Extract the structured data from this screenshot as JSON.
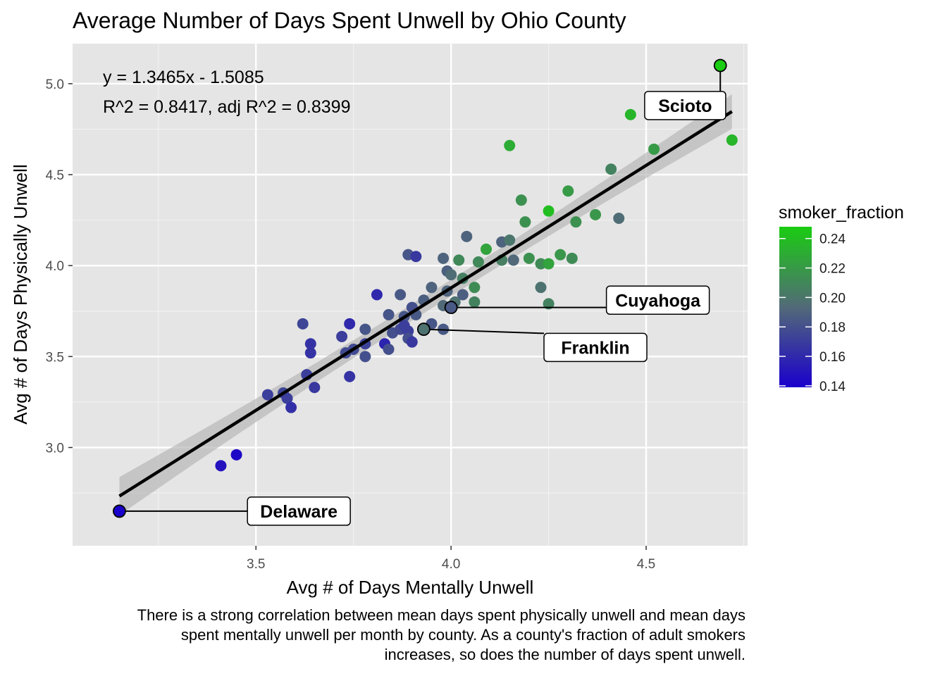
{
  "chart_data": {
    "type": "scatter",
    "title": "Average Number of Days Spent Unwell by Ohio County",
    "xlabel": "Avg # of Days Mentally Unwell",
    "ylabel": "Avg # of Days Physically Unwell",
    "caption": [
      "There is a strong correlation between mean days spent physically unwell and mean days",
      "spent mentally unwell per month by county. As a county's fraction of adult smokers",
      "increases, so does the number of days spent unwell."
    ],
    "xlim": [
      3.03,
      4.76
    ],
    "ylim": [
      2.46,
      5.22
    ],
    "x_ticks": [
      3.5,
      4.0,
      4.5
    ],
    "x_tick_labels": [
      "3.5",
      "4.0",
      "4.5"
    ],
    "y_ticks": [
      3.0,
      3.5,
      4.0,
      4.5,
      5.0
    ],
    "y_tick_labels": [
      "3.0",
      "3.5",
      "4.0",
      "4.5",
      "5.0"
    ],
    "grid": true,
    "background_color": "#e5e5e5",
    "regression": {
      "slope": 1.3465,
      "intercept": -1.5085,
      "x_range": [
        3.15,
        4.72
      ],
      "equation": "y = 1.3465x - 1.5085",
      "r_squared": "R^2 = 0.8417, adj R^2 = 0.8399",
      "line_color": "#000000",
      "band_color": "#b3b3b3"
    },
    "color_scale": {
      "title": "smoker_fraction",
      "low_color": "#1a00cc",
      "mid_color": "#526a78",
      "high_color": "#1acc12",
      "range": [
        0.139,
        0.248
      ],
      "ticks": [
        0.14,
        0.16,
        0.18,
        0.2,
        0.22,
        0.24
      ],
      "tick_labels": [
        "0.14",
        "0.16",
        "0.18",
        "0.20",
        "0.22",
        "0.24"
      ],
      "legend_position": "right"
    },
    "points": [
      {
        "x": 3.41,
        "y": 2.9,
        "s": 0.148
      },
      {
        "x": 3.45,
        "y": 2.96,
        "s": 0.143
      },
      {
        "x": 3.53,
        "y": 3.29,
        "s": 0.171
      },
      {
        "x": 3.57,
        "y": 3.3,
        "s": 0.175
      },
      {
        "x": 3.58,
        "y": 3.27,
        "s": 0.171
      },
      {
        "x": 3.59,
        "y": 3.22,
        "s": 0.163
      },
      {
        "x": 3.62,
        "y": 3.68,
        "s": 0.175
      },
      {
        "x": 3.63,
        "y": 3.4,
        "s": 0.171
      },
      {
        "x": 3.64,
        "y": 3.57,
        "s": 0.165
      },
      {
        "x": 3.64,
        "y": 3.52,
        "s": 0.165
      },
      {
        "x": 3.65,
        "y": 3.33,
        "s": 0.168
      },
      {
        "x": 3.72,
        "y": 3.61,
        "s": 0.171
      },
      {
        "x": 3.73,
        "y": 3.52,
        "s": 0.177
      },
      {
        "x": 3.74,
        "y": 3.68,
        "s": 0.16
      },
      {
        "x": 3.74,
        "y": 3.39,
        "s": 0.165
      },
      {
        "x": 3.75,
        "y": 3.54,
        "s": 0.177
      },
      {
        "x": 3.78,
        "y": 3.65,
        "s": 0.183
      },
      {
        "x": 3.78,
        "y": 3.57,
        "s": 0.173
      },
      {
        "x": 3.78,
        "y": 3.5,
        "s": 0.18
      },
      {
        "x": 3.81,
        "y": 3.84,
        "s": 0.16
      },
      {
        "x": 3.83,
        "y": 3.57,
        "s": 0.157
      },
      {
        "x": 3.84,
        "y": 3.73,
        "s": 0.183
      },
      {
        "x": 3.84,
        "y": 3.54,
        "s": 0.18
      },
      {
        "x": 3.85,
        "y": 3.63,
        "s": 0.18
      },
      {
        "x": 3.87,
        "y": 3.84,
        "s": 0.185
      },
      {
        "x": 3.87,
        "y": 3.65,
        "s": 0.177
      },
      {
        "x": 3.88,
        "y": 3.72,
        "s": 0.183
      },
      {
        "x": 3.88,
        "y": 3.67,
        "s": 0.171
      },
      {
        "x": 3.89,
        "y": 3.64,
        "s": 0.171
      },
      {
        "x": 3.89,
        "y": 4.06,
        "s": 0.183
      },
      {
        "x": 3.89,
        "y": 3.6,
        "s": 0.18
      },
      {
        "x": 3.9,
        "y": 3.77,
        "s": 0.18
      },
      {
        "x": 3.9,
        "y": 3.58,
        "s": 0.168
      },
      {
        "x": 3.91,
        "y": 4.05,
        "s": 0.168
      },
      {
        "x": 3.91,
        "y": 3.73,
        "s": 0.185
      },
      {
        "x": 3.93,
        "y": 3.81,
        "s": 0.188
      },
      {
        "x": 3.95,
        "y": 3.88,
        "s": 0.19
      },
      {
        "x": 3.95,
        "y": 3.68,
        "s": 0.183
      },
      {
        "x": 3.98,
        "y": 4.04,
        "s": 0.19
      },
      {
        "x": 3.98,
        "y": 3.78,
        "s": 0.193
      },
      {
        "x": 3.98,
        "y": 3.65,
        "s": 0.185
      },
      {
        "x": 3.99,
        "y": 3.97,
        "s": 0.188
      },
      {
        "x": 3.99,
        "y": 3.86,
        "s": 0.19
      },
      {
        "x": 4.0,
        "y": 3.95,
        "s": 0.195
      },
      {
        "x": 4.01,
        "y": 3.8,
        "s": 0.198
      },
      {
        "x": 4.02,
        "y": 4.03,
        "s": 0.21
      },
      {
        "x": 4.03,
        "y": 3.93,
        "s": 0.205
      },
      {
        "x": 4.03,
        "y": 3.84,
        "s": 0.188
      },
      {
        "x": 4.04,
        "y": 4.16,
        "s": 0.19
      },
      {
        "x": 4.06,
        "y": 3.88,
        "s": 0.212
      },
      {
        "x": 4.06,
        "y": 3.8,
        "s": 0.207
      },
      {
        "x": 4.07,
        "y": 4.02,
        "s": 0.21
      },
      {
        "x": 4.09,
        "y": 4.09,
        "s": 0.225
      },
      {
        "x": 4.13,
        "y": 4.13,
        "s": 0.19
      },
      {
        "x": 4.13,
        "y": 4.03,
        "s": 0.205
      },
      {
        "x": 4.15,
        "y": 4.14,
        "s": 0.2
      },
      {
        "x": 4.15,
        "y": 4.66,
        "s": 0.23
      },
      {
        "x": 4.16,
        "y": 4.03,
        "s": 0.193
      },
      {
        "x": 4.18,
        "y": 4.36,
        "s": 0.215
      },
      {
        "x": 4.19,
        "y": 4.24,
        "s": 0.215
      },
      {
        "x": 4.2,
        "y": 4.04,
        "s": 0.215
      },
      {
        "x": 4.23,
        "y": 4.01,
        "s": 0.212
      },
      {
        "x": 4.23,
        "y": 3.88,
        "s": 0.198
      },
      {
        "x": 4.25,
        "y": 4.3,
        "s": 0.24
      },
      {
        "x": 4.25,
        "y": 4.01,
        "s": 0.225
      },
      {
        "x": 4.25,
        "y": 3.79,
        "s": 0.207
      },
      {
        "x": 4.28,
        "y": 4.06,
        "s": 0.218
      },
      {
        "x": 4.3,
        "y": 4.41,
        "s": 0.22
      },
      {
        "x": 4.31,
        "y": 4.04,
        "s": 0.212
      },
      {
        "x": 4.32,
        "y": 4.24,
        "s": 0.215
      },
      {
        "x": 4.37,
        "y": 4.28,
        "s": 0.218
      },
      {
        "x": 4.41,
        "y": 4.53,
        "s": 0.207
      },
      {
        "x": 4.43,
        "y": 4.26,
        "s": 0.195
      },
      {
        "x": 4.46,
        "y": 4.83,
        "s": 0.235
      },
      {
        "x": 4.52,
        "y": 4.64,
        "s": 0.22
      },
      {
        "x": 4.72,
        "y": 4.69,
        "s": 0.235
      }
    ],
    "labeled_points": [
      {
        "name": "Scioto",
        "x": 4.69,
        "y": 5.1,
        "s": 0.248,
        "label_x": 4.6,
        "label_y": 4.88
      },
      {
        "name": "Cuyahoga",
        "x": 4.0,
        "y": 3.77,
        "s": 0.185,
        "label_x": 4.53,
        "label_y": 3.81
      },
      {
        "name": "Franklin",
        "x": 3.93,
        "y": 3.65,
        "s": 0.198,
        "label_x": 4.37,
        "label_y": 3.55
      },
      {
        "name": "Delaware",
        "x": 3.15,
        "y": 2.65,
        "s": 0.139,
        "label_x": 3.61,
        "label_y": 2.65
      }
    ]
  }
}
